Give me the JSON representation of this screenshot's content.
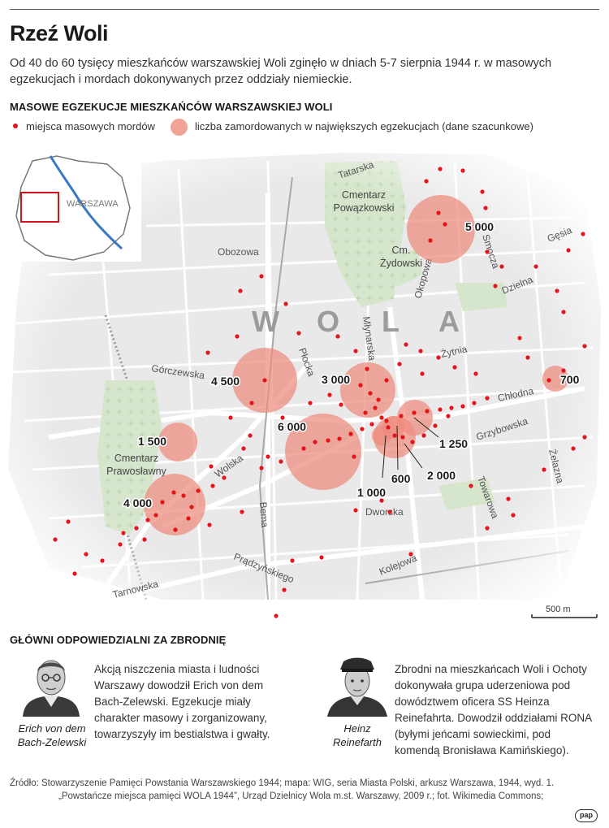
{
  "header": {
    "title": "Rzeź Woli",
    "intro": "Od 40 do 60 tysięcy mieszkańców warszawskiej Woli zginęło w dniach 5-7 sierpnia 1944 r. w masowych egzekucjach i mordach dokonywanych przez oddziały niemieckie."
  },
  "map_section": {
    "heading": "MASOWE EGZEKUCJE MIESZKAŃCÓW WARSZAWSKIEJ WOLI",
    "legend_dot": "miejsca masowych mordów",
    "legend_circle": "liczba zamordowanych w największych egzekucjach (dane szacunkowe)",
    "colors": {
      "dot": "#e3141b",
      "circle": "#f0a498",
      "green": "#d6e6cc",
      "road": "#ffffff",
      "block": "#e4e4e4"
    }
  },
  "map": {
    "inset_label": "WARSZAWA",
    "district_label": [
      "W",
      "O",
      "L",
      "A"
    ],
    "streets": {
      "tatarska": "Tatarska",
      "obozowa": "Obozowa",
      "gorczewska": "Górczewska",
      "plocka": "Płocka",
      "mlynarska": "Młynarska",
      "wolska": "Wolska",
      "bema": "Bema",
      "pradzynskiego": "Prądzyńskiego",
      "tarnowska": "Tarnowska",
      "dworska": "Dworska",
      "kolejowa": "Kolejowa",
      "towarowa": "Towarowa",
      "zelazna": "Żelazna",
      "grzybowska": "Grzybowska",
      "chlodna": "Chłodna",
      "zytnia": "Żytnia",
      "dzielna": "Dzielna",
      "gesia": "Gęsia",
      "smocza": "Smocza",
      "okopowa": "Okopowa"
    },
    "places": {
      "powazkowski": [
        "Cmentarz",
        "Powązkowski"
      ],
      "zydowski": [
        "Cm.",
        "Żydowski"
      ],
      "prawoslawny": [
        "Cmentarz",
        "Prawosławny"
      ]
    },
    "counts": {
      "c5000": "5 000",
      "c4500": "4 500",
      "c3000": "3 000",
      "c6000": "6 000",
      "c1500": "1 500",
      "c4000": "4 000",
      "c700": "700",
      "c1250": "1 250",
      "c600": "600",
      "c2000": "2 000",
      "c1000": "1 000"
    },
    "scale_label": "500 m"
  },
  "people_section": {
    "heading": "GŁÓWNI ODPOWIEDZIALNI ZA ZBRODNIĘ",
    "person1": {
      "name_line1": "Erich von dem",
      "name_line2": "Bach-Zelewski",
      "desc": [
        "Akcją niszczenia miasta i ludności",
        "Warszawy dowodził Erich von dem",
        "Bach-Zelewski. Egzekucje miały",
        "charakter masowy i zorganizowany,",
        "towarzyszyły im bestialstwa i gwałty."
      ]
    },
    "person2": {
      "name_line1": "Heinz",
      "name_line2": "Reinefarth",
      "desc": [
        "Zbrodni na mieszkańcach Woli i Ochoty",
        "dokonywała grupa uderzeniowa pod",
        "dowództwem oficera SS Heinza",
        "Reinefahrta. Dowodził oddziałami RONA",
        "(byłymi jeńcami sowieckimi, pod",
        "komendą Bronisława Kamińskiego)."
      ]
    }
  },
  "source": {
    "line1": "Źródło: Stowarzyszenie Pamięci Powstania Warszawskiego 1944; mapa: WIG, seria Miasta Polski, arkusz Warszawa, 1944, wyd. 1.",
    "line2": "„Powstańcze miejsca pamięci WOLA 1944”, Urząd Dzielnicy Wola m.st. Warszawy, 2009 r.; fot. Wikimedia Commons;"
  },
  "logo": "pap"
}
